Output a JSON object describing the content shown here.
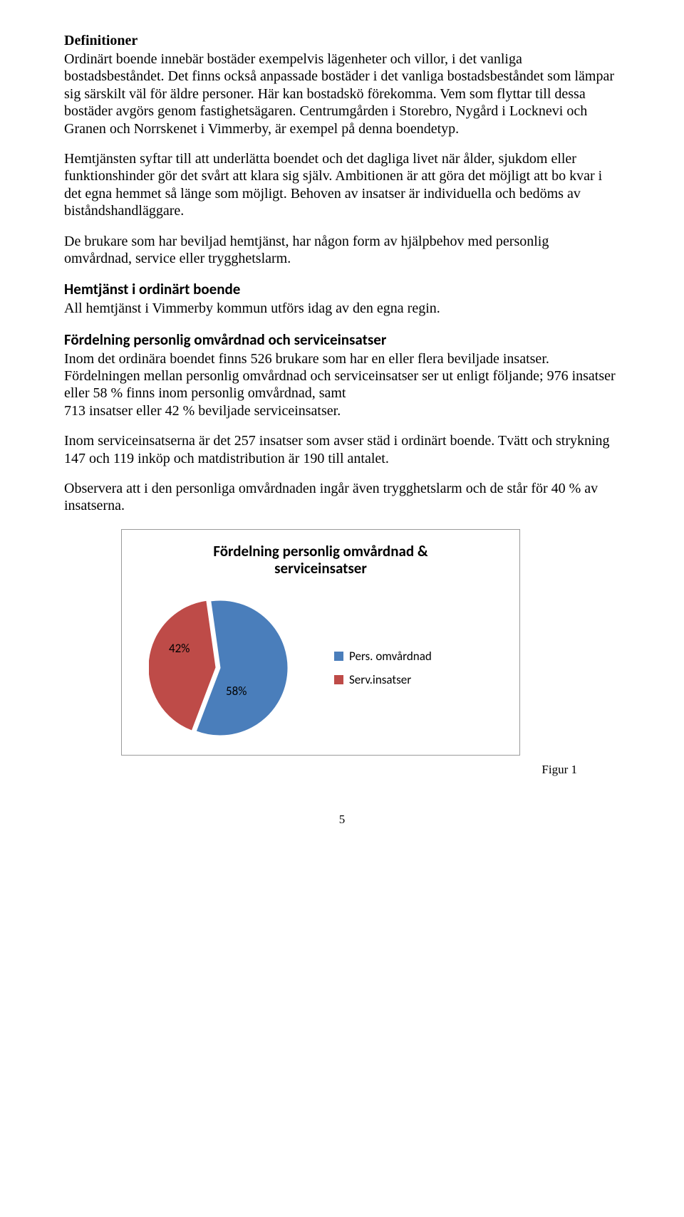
{
  "sections": {
    "definitioner": {
      "heading": "Definitioner",
      "p1": "Ordinärt boende innebär bostäder exempelvis lägenheter och villor, i det vanliga bostadsbeståndet. Det finns också anpassade bostäder i det vanliga bostadsbeståndet som lämpar sig särskilt väl för äldre personer. Här kan bostadskö förekomma. Vem som flyttar till dessa bostäder avgörs genom fastighetsägaren. Centrumgården i Storebro, Nygård i Locknevi och Granen och Norrskenet i Vimmerby, är exempel på denna boendetyp.",
      "p2": "Hemtjänsten syftar till att underlätta boendet och det dagliga livet när ålder, sjukdom eller funktionshinder gör det svårt att klara sig själv. Ambitionen är att göra det möjligt att bo kvar i det egna hemmet så länge som möjligt. Behoven av insatser är individuella och bedöms av biståndshandläggare.",
      "p3": "De brukare som har beviljad hemtjänst, har någon form av hjälpbehov med personlig omvårdnad, service eller trygghetslarm."
    },
    "hemtjanst": {
      "heading": "Hemtjänst i ordinärt boende",
      "p1": "All hemtjänst i Vimmerby kommun utförs idag av den egna regin."
    },
    "fordelning": {
      "heading": "Fördelning personlig omvårdnad och serviceinsatser",
      "p1": "Inom det ordinära boendet finns 526 brukare som har en eller flera beviljade insatser. Fördelningen mellan personlig omvårdnad och serviceinsatser ser ut enligt följande; 976 insatser eller 58 % finns inom personlig omvårdnad, samt",
      "p2": "713 insatser eller 42 % beviljade serviceinsatser.",
      "p3": "Inom serviceinsatserna är det 257 insatser som avser städ i ordinärt boende. Tvätt och strykning 147 och 119 inköp och matdistribution är 190 till antalet.",
      "p4": "Observera att i den personliga omvårdnaden ingår även trygghetslarm och de står för 40 % av insatserna."
    }
  },
  "chart": {
    "type": "pie",
    "title_line1": "Fördelning personlig omvårdnad &",
    "title_line2": "serviceinsatser",
    "slices": [
      {
        "label": "Pers. omvårdnad",
        "value": 58,
        "display": "58%",
        "color": "#4a7ebb"
      },
      {
        "label": "Serv.insatser",
        "value": 42,
        "display": "42%",
        "color": "#be4b48"
      }
    ],
    "background_color": "#ffffff",
    "border_color": "#9a9a9a",
    "title_fontsize": 21,
    "label_fontsize": 17,
    "legend_fontsize": 17,
    "start_angle_deg": -98
  },
  "figure_caption": "Figur 1",
  "page_number": "5"
}
